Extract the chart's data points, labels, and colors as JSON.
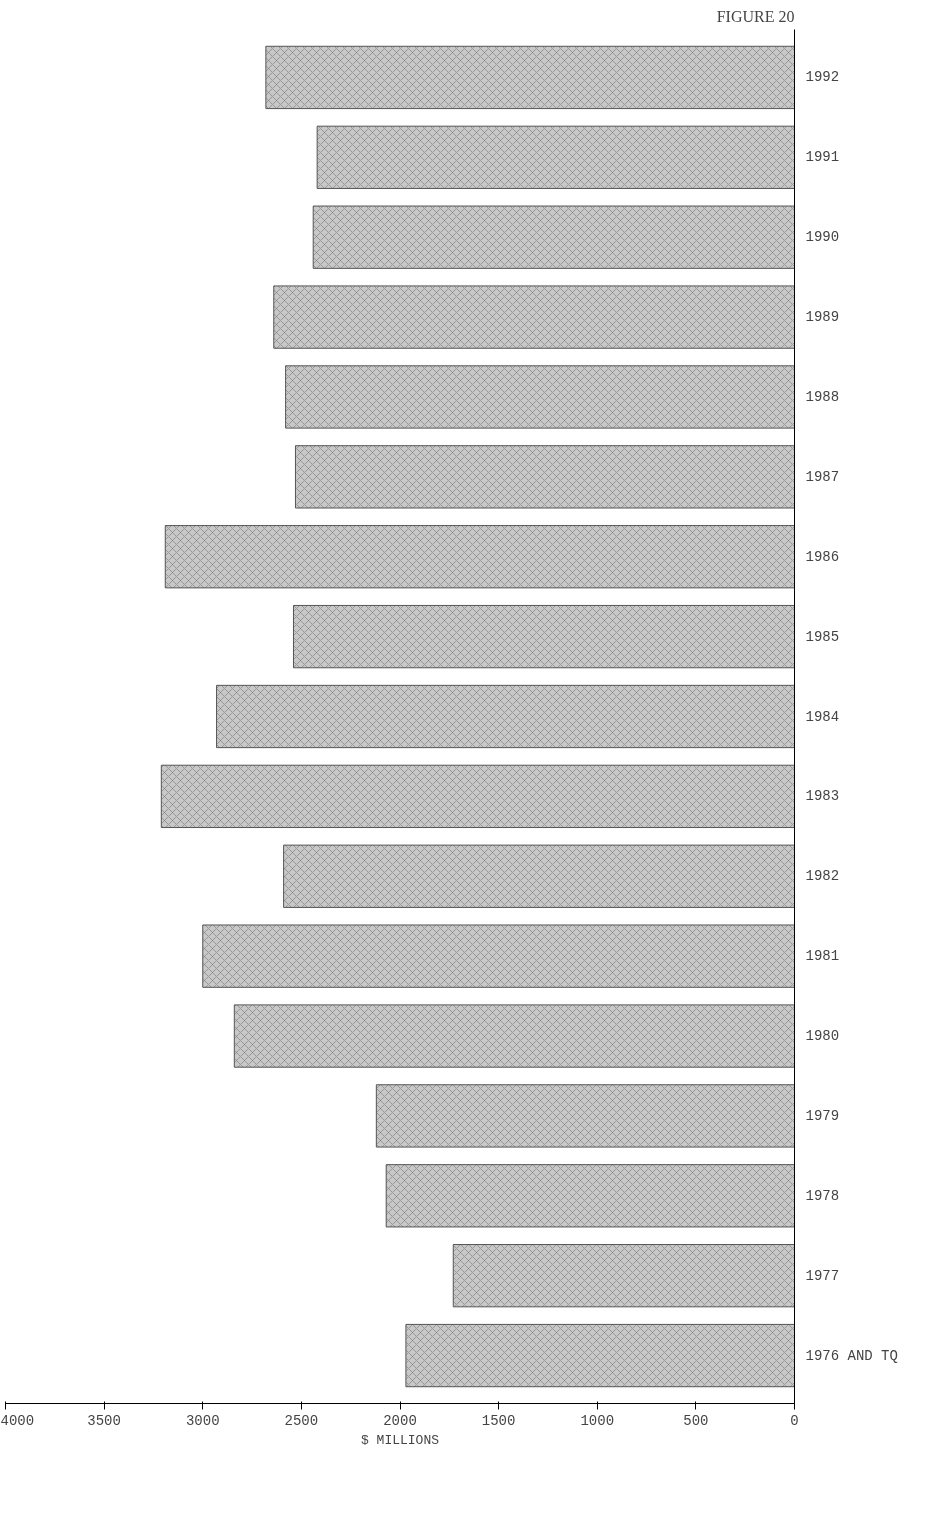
{
  "chart_data": {
    "type": "bar",
    "orientation": "horizontal",
    "title": "FIGURE 20",
    "xlabel": "$ MILLIONS",
    "categories": [
      "1992",
      "1991",
      "1990",
      "1989",
      "1988",
      "1987",
      "1986",
      "1985",
      "1984",
      "1983",
      "1982",
      "1981",
      "1980",
      "1979",
      "1978",
      "1977",
      "1976 AND TQ"
    ],
    "values": [
      2680,
      2420,
      2440,
      2640,
      2580,
      2530,
      3190,
      2540,
      2930,
      3210,
      2590,
      3000,
      2840,
      2120,
      2070,
      1730,
      1970
    ],
    "color": "#c8c8c8",
    "xlim": [
      4000,
      0
    ],
    "xticks": [
      4000,
      3500,
      3000,
      2500,
      2000,
      1500,
      1000,
      500,
      0
    ],
    "grid": false
  }
}
